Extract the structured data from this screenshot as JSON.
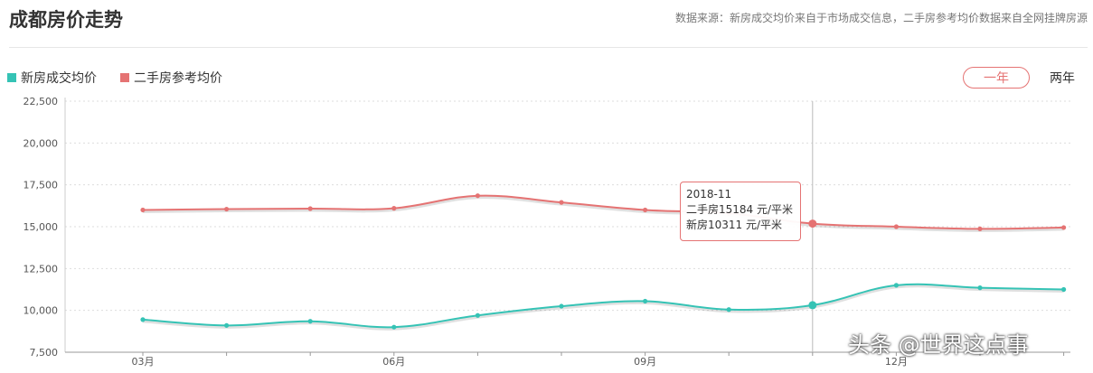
{
  "header": {
    "title": "成都房价走势",
    "source_note": "数据来源：新房成交均价来自于市场成交信息，二手房参考均价数据来自全网挂牌房源"
  },
  "legend": [
    {
      "label": "新房成交均价",
      "color": "#35c3b5"
    },
    {
      "label": "二手房参考均价",
      "color": "#e57373"
    }
  ],
  "range_toggle": {
    "active": "一年",
    "other": "两年"
  },
  "tooltip": {
    "date": "2018-11",
    "line1": "二手房15184 元/平米",
    "line2": "新房10311 元/平米"
  },
  "watermark": "头条 @世界这点事",
  "chart_data": {
    "type": "line",
    "x": [
      "2018-03",
      "2018-04",
      "2018-05",
      "2018-06",
      "2018-07",
      "2018-08",
      "2018-09",
      "2018-10",
      "2018-11",
      "2018-12",
      "2019-01",
      "2019-02"
    ],
    "x_tick_labels": [
      "03月",
      "",
      "",
      "06月",
      "",
      "",
      "09月",
      "",
      "",
      "12月",
      "",
      ""
    ],
    "y_ticks": [
      "22,500",
      "20,000",
      "17,500",
      "15,000",
      "12,500",
      "10,000",
      "7,500"
    ],
    "ylim": [
      7500,
      22500
    ],
    "grid": true,
    "legend_position": "top-left",
    "highlight_index": 8,
    "series": [
      {
        "name": "新房成交均价",
        "color": "#35c3b5",
        "values": [
          9450,
          9100,
          9350,
          9000,
          9700,
          10250,
          10550,
          10050,
          10311,
          11500,
          11350,
          11250
        ]
      },
      {
        "name": "二手房参考均价",
        "color": "#e57373",
        "values": [
          16000,
          16050,
          16080,
          16100,
          16850,
          16450,
          16000,
          15800,
          15184,
          15000,
          14870,
          14950
        ]
      }
    ]
  }
}
